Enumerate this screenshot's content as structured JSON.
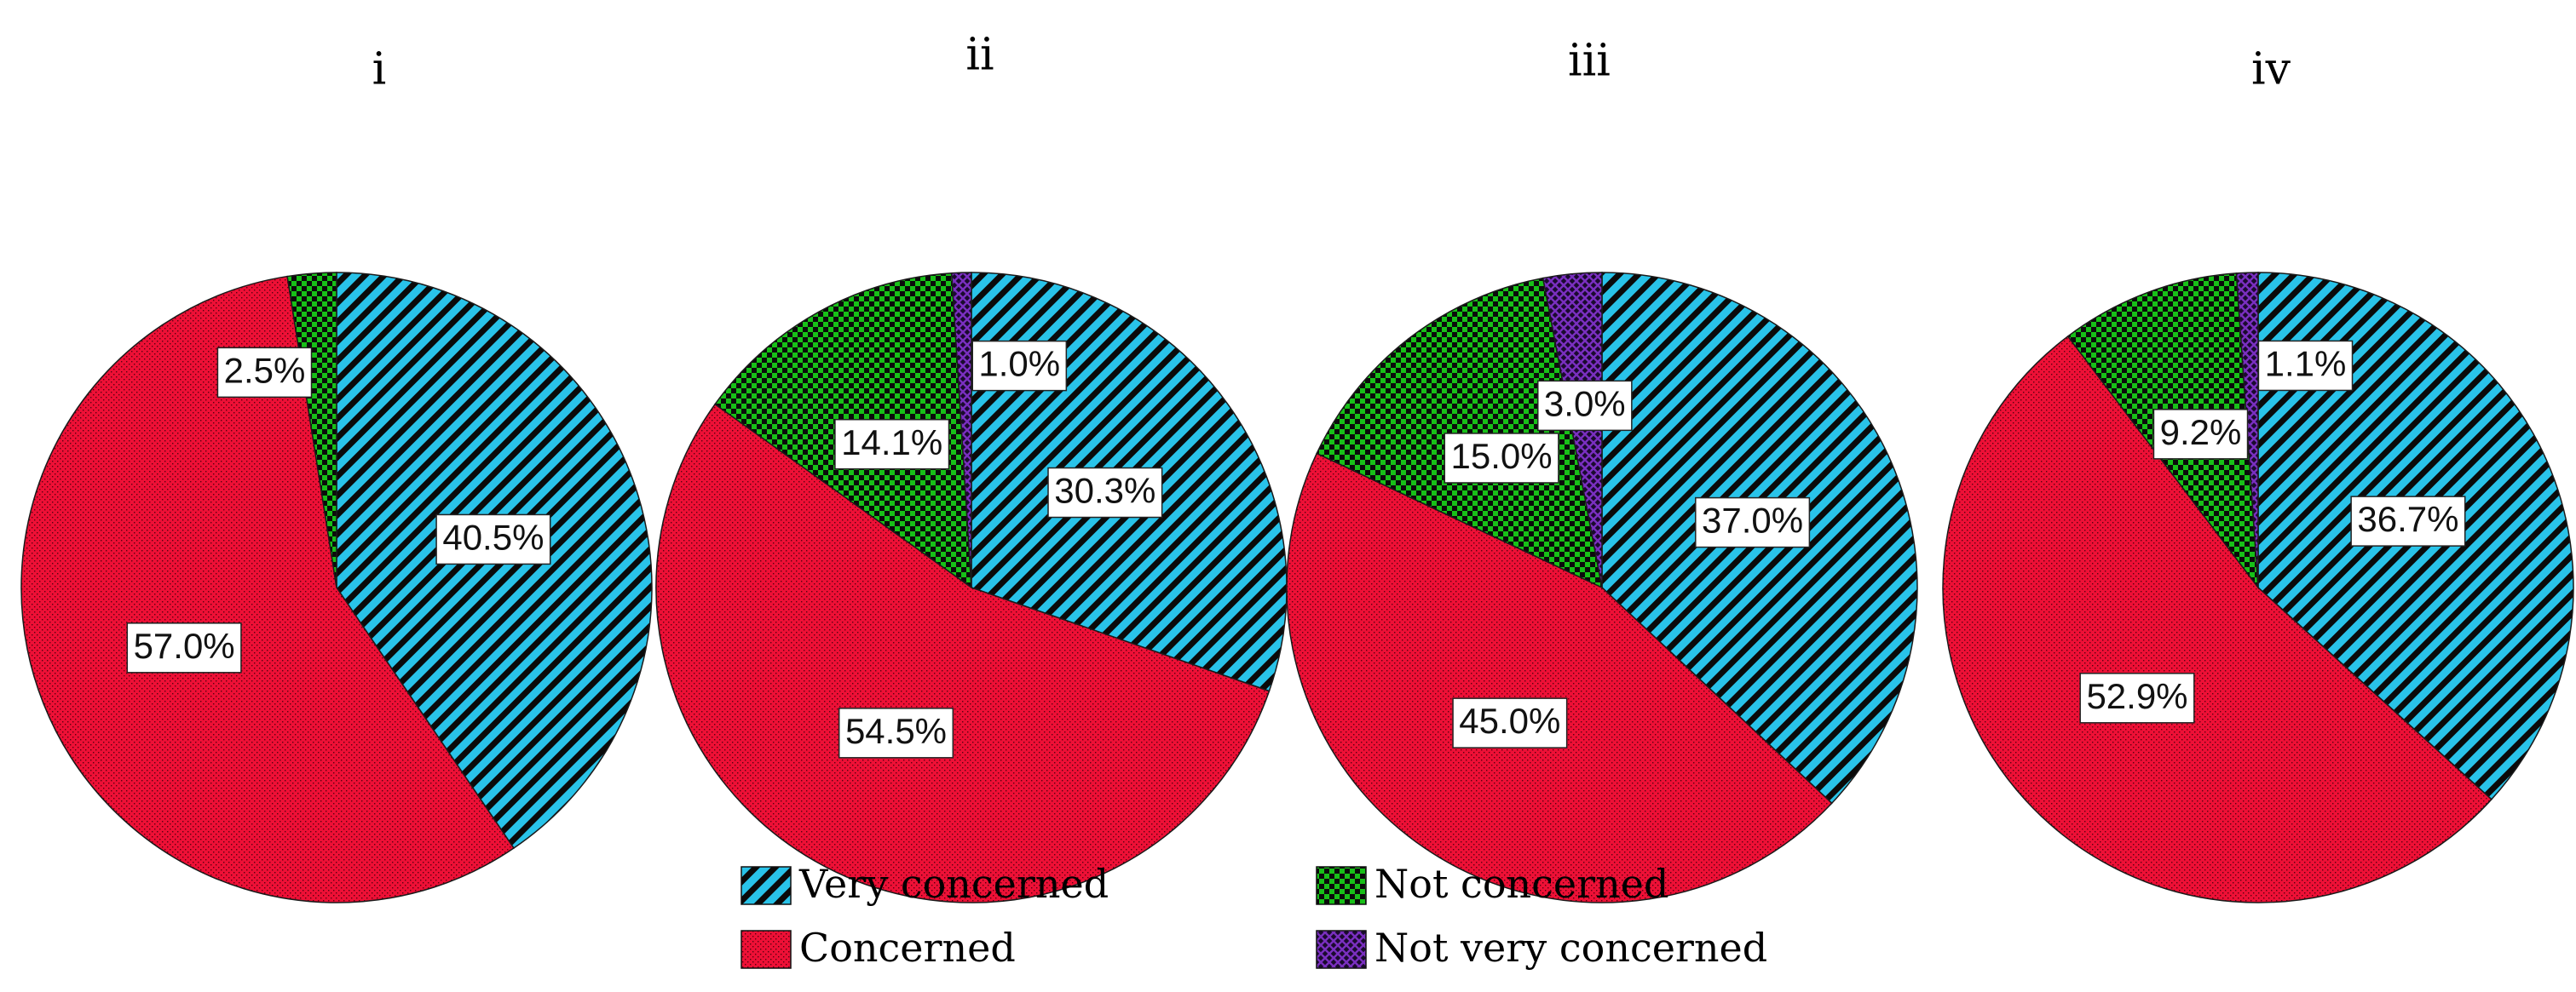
{
  "legend": {
    "placement": "bottom-center",
    "items": [
      {
        "key": "very",
        "label": "Very concerned"
      },
      {
        "key": "notc",
        "label": "Not concerned"
      },
      {
        "key": "conc",
        "label": "Concerned"
      },
      {
        "key": "notv",
        "label": "Not very concerned"
      }
    ]
  },
  "categories": {
    "very": {
      "label": "Very concerned",
      "color": "#29c3e9",
      "pattern": "diagonal-stripes"
    },
    "conc": {
      "label": "Concerned",
      "color": "#ee1036",
      "pattern": "dots"
    },
    "notc": {
      "label": "Not concerned",
      "color": "#18c018",
      "pattern": "checker"
    },
    "notv": {
      "label": "Not very concerned",
      "color": "#7a2fc0",
      "pattern": "crosshatch"
    }
  },
  "chart_data": [
    {
      "type": "pie",
      "title": "i",
      "slices": [
        {
          "key": "very",
          "value": 40.5,
          "label": "40.5%"
        },
        {
          "key": "conc",
          "value": 57.0,
          "label": "57.0%"
        },
        {
          "key": "notc",
          "value": 2.5,
          "label": "2.5%"
        }
      ]
    },
    {
      "type": "pie",
      "title": "ii",
      "slices": [
        {
          "key": "very",
          "value": 30.3,
          "label": "30.3%"
        },
        {
          "key": "conc",
          "value": 54.5,
          "label": "54.5%"
        },
        {
          "key": "notc",
          "value": 14.1,
          "label": "14.1%"
        },
        {
          "key": "notv",
          "value": 1.0,
          "label": "1.0%"
        }
      ]
    },
    {
      "type": "pie",
      "title": "iii",
      "slices": [
        {
          "key": "very",
          "value": 37.0,
          "label": "37.0%"
        },
        {
          "key": "conc",
          "value": 45.0,
          "label": "45.0%"
        },
        {
          "key": "notc",
          "value": 15.0,
          "label": "15.0%"
        },
        {
          "key": "notv",
          "value": 3.0,
          "label": "3.0%"
        }
      ]
    },
    {
      "type": "pie",
      "title": "iv",
      "slices": [
        {
          "key": "very",
          "value": 36.7,
          "label": "36.7%"
        },
        {
          "key": "conc",
          "value": 52.9,
          "label": "52.9%"
        },
        {
          "key": "notc",
          "value": 9.2,
          "label": "9.2%"
        },
        {
          "key": "notv",
          "value": 1.1,
          "label": "1.1%"
        }
      ]
    }
  ]
}
